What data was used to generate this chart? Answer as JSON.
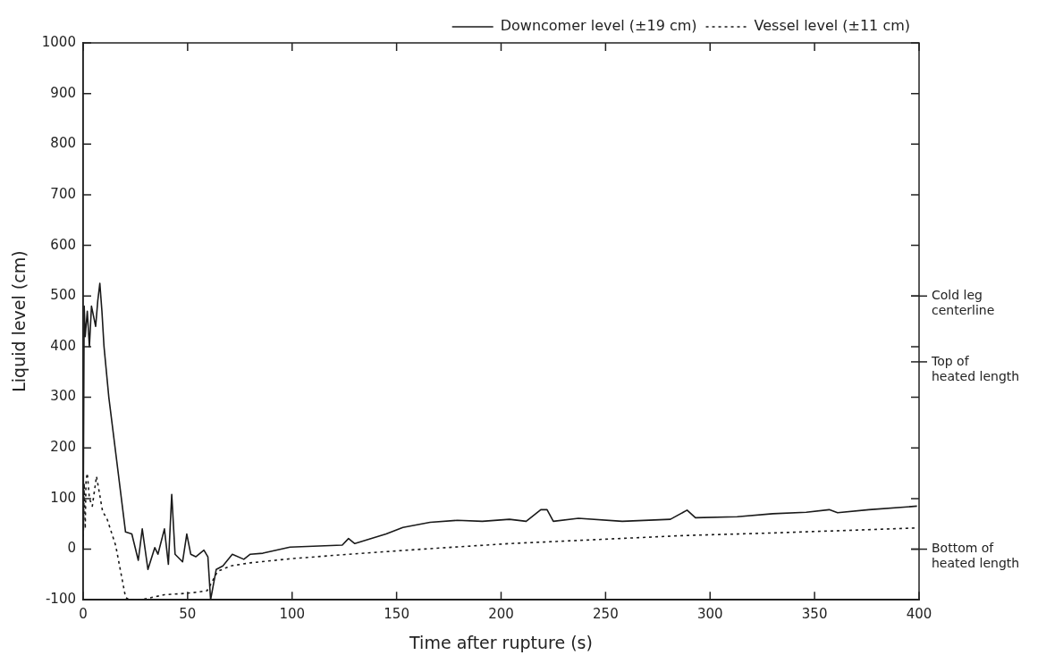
{
  "chart_data": {
    "type": "line",
    "xlabel": "Time after rupture (s)",
    "ylabel": "Liquid level (cm)",
    "xlim": [
      0,
      400
    ],
    "xticks": [
      0,
      50,
      100,
      150,
      200,
      250,
      300,
      350,
      400
    ],
    "ylim": [
      -100,
      1000
    ],
    "yticks": [
      -100,
      0,
      100,
      200,
      300,
      400,
      500,
      600,
      700,
      800,
      900,
      1000
    ],
    "ref_lines": [
      {
        "axis": "y",
        "value": 500,
        "label": "Cold leg\ncenterline"
      },
      {
        "axis": "y",
        "value": 370,
        "label": "Top of\nheated length"
      },
      {
        "axis": "y",
        "value": 0,
        "label": "Bottom of\nheated length"
      }
    ],
    "grid": false,
    "legend": "top right",
    "marker": "none",
    "series": [
      {
        "name": "Downcomer level (±19 cm)",
        "color": "#1a1a1a",
        "line_style": "solid",
        "x": [
          0,
          0.5,
          1,
          2,
          3,
          4,
          5,
          6,
          7,
          8,
          9,
          10,
          12.3,
          20.3,
          23.3,
          26.4,
          28.3,
          31,
          34.3,
          35.8,
          38.9,
          40.8,
          42.4,
          44,
          47.6,
          49.6,
          51.5,
          53.9,
          57.8,
          59.7,
          61,
          63.7,
          66.9,
          71.4,
          76.9,
          80,
          86,
          99,
          124,
          127,
          130,
          145,
          153,
          166,
          179,
          191,
          204,
          212,
          219,
          222,
          225,
          237,
          258,
          281,
          289,
          293,
          313,
          330,
          346,
          357,
          361,
          376,
          399
        ],
        "values": [
          0,
          480,
          420,
          470,
          400,
          480,
          460,
          440,
          490,
          525,
          470,
          400,
          300,
          34,
          30,
          -22,
          40,
          -40,
          3,
          -10,
          40,
          -30,
          108,
          -10,
          -25,
          30,
          -10,
          -15,
          -2,
          -15,
          -100,
          -40,
          -33,
          -10,
          -20,
          -10,
          -8,
          4,
          8,
          21,
          11,
          30,
          43,
          53,
          57,
          55,
          59,
          55,
          78,
          78,
          55,
          61,
          55,
          59,
          77,
          62,
          64,
          70,
          73,
          78,
          72,
          78,
          85
        ]
      },
      {
        "name": "Vessel level (±11 cm)",
        "color": "#1a1a1a",
        "line_style": "dotted",
        "x": [
          0,
          0.5,
          1,
          1.4,
          2,
          3,
          4.4,
          6.4,
          9.3,
          11.6,
          15.6,
          20.3,
          22,
          28,
          31,
          38.9,
          46.7,
          54.6,
          59.3,
          61,
          64.3,
          70.6,
          80,
          99,
          124,
          162,
          204,
          246,
          288,
          330,
          372,
          399
        ],
        "values": [
          0,
          130,
          40,
          136,
          150,
          100,
          85,
          144,
          75,
          58,
          7,
          -95,
          -100,
          -100,
          -97,
          -90,
          -88,
          -85,
          -82,
          -70,
          -44,
          -33,
          -27,
          -19,
          -11,
          0,
          11,
          19,
          27,
          32,
          38,
          42
        ]
      }
    ]
  }
}
